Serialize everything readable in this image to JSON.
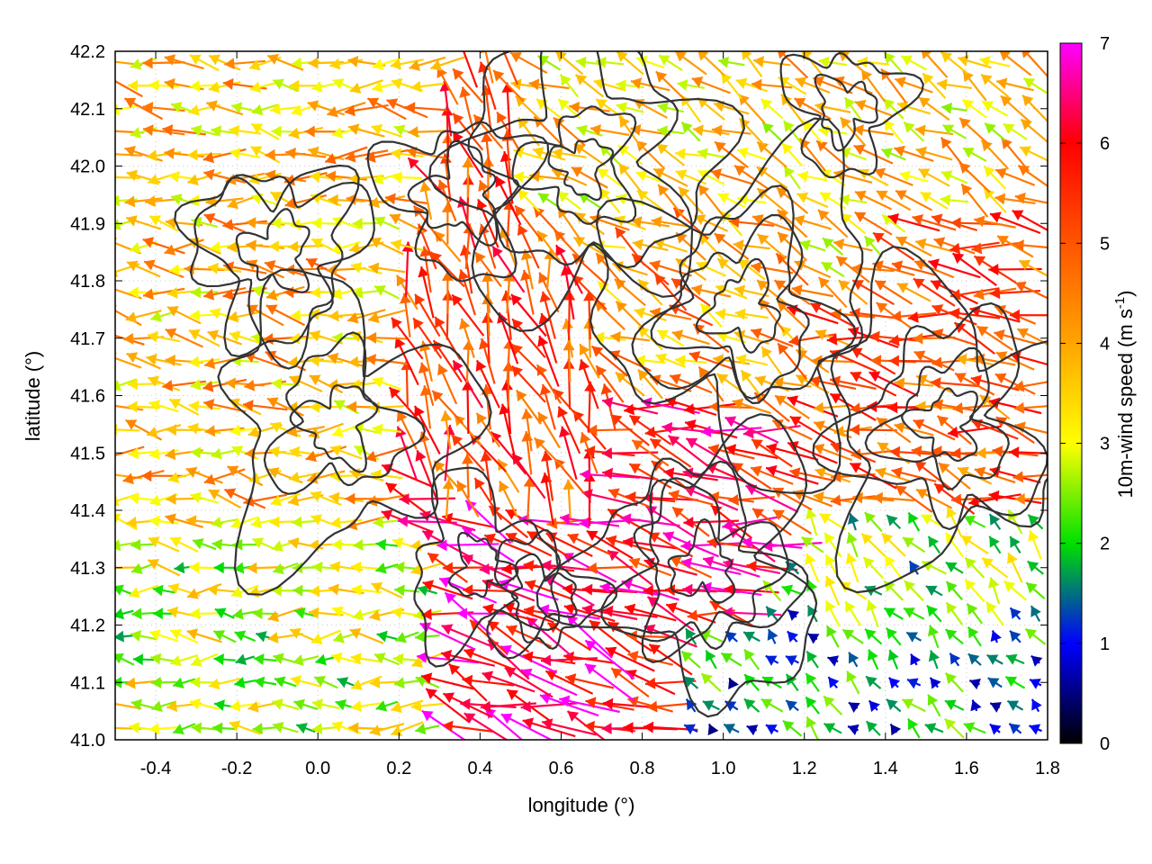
{
  "chart_data": {
    "type": "vector-field",
    "xlabel": "longitude (°)",
    "ylabel": "latitude (°)",
    "xlim": [
      -0.5,
      1.8
    ],
    "ylim": [
      41.0,
      42.2
    ],
    "x_ticks": [
      -0.4,
      -0.2,
      0.0,
      0.2,
      0.4,
      0.6,
      0.8,
      1.0,
      1.2,
      1.4,
      1.6,
      1.8
    ],
    "x_tick_labels": [
      "-0.4",
      "-0.2",
      "0.0",
      "0.2",
      "0.4",
      "0.6",
      "0.8",
      "1.0",
      "1.2",
      "1.4",
      "1.6",
      "1.8"
    ],
    "y_ticks": [
      41.0,
      41.1,
      41.2,
      41.3,
      41.4,
      41.5,
      41.6,
      41.7,
      41.8,
      41.9,
      42.0,
      42.1,
      42.2
    ],
    "y_tick_labels": [
      "41.0",
      "41.1",
      "41.2",
      "41.3",
      "41.4",
      "41.5",
      "41.6",
      "41.7",
      "41.8",
      "41.9",
      "42.0",
      "42.1",
      "42.2"
    ],
    "grid": "dotted",
    "colorbar": {
      "label_main": "10m-wind speed (m s",
      "label_sup": "-1",
      "label_end": ")",
      "range": [
        0,
        7
      ],
      "ticks": [
        0,
        1,
        2,
        3,
        4,
        5,
        6,
        7
      ],
      "tick_labels": [
        "0",
        "1",
        "2",
        "3",
        "4",
        "5",
        "6",
        "7"
      ],
      "color_stops": [
        {
          "value": 0,
          "color": "#000000"
        },
        {
          "value": 1,
          "color": "#0000ff"
        },
        {
          "value": 2,
          "color": "#00e000"
        },
        {
          "value": 3,
          "color": "#ffff00"
        },
        {
          "value": 4,
          "color": "#ffa500"
        },
        {
          "value": 5,
          "color": "#ff5500"
        },
        {
          "value": 6,
          "color": "#ff0000"
        },
        {
          "value": 7,
          "color": "#ff00ff"
        }
      ]
    },
    "wind_regions": [
      {
        "lon": [
          -0.5,
          0.2
        ],
        "lat": [
          41.35,
          42.2
        ],
        "speed": 3.8,
        "dir_deg": 175
      },
      {
        "lon": [
          -0.5,
          0.3
        ],
        "lat": [
          41.0,
          41.35
        ],
        "speed": 2.8,
        "dir_deg": 178
      },
      {
        "lon": [
          0.3,
          0.55
        ],
        "lat": [
          41.15,
          41.35
        ],
        "speed": 6.5,
        "dir_deg": 160
      },
      {
        "lon": [
          0.3,
          0.7
        ],
        "lat": [
          41.4,
          41.75
        ],
        "speed": 5.2,
        "dir_deg": 110
      },
      {
        "lon": [
          0.6,
          1.2
        ],
        "lat": [
          41.35,
          41.55
        ],
        "speed": 5.8,
        "dir_deg": 165
      },
      {
        "lon": [
          0.7,
          1.2
        ],
        "lat": [
          41.6,
          41.9
        ],
        "speed": 4.2,
        "dir_deg": 150
      },
      {
        "lon": [
          0.9,
          1.8
        ],
        "lat": [
          41.0,
          41.2
        ],
        "speed": 1.6,
        "dir_deg": 135
      },
      {
        "lon": [
          1.2,
          1.8
        ],
        "lat": [
          41.2,
          41.4
        ],
        "speed": 2.3,
        "dir_deg": 130
      },
      {
        "lon": [
          1.2,
          1.8
        ],
        "lat": [
          41.4,
          41.75
        ],
        "speed": 5.0,
        "dir_deg": 165
      },
      {
        "lon": [
          0.5,
          1.8
        ],
        "lat": [
          41.9,
          42.2
        ],
        "speed": 3.6,
        "dir_deg": 150
      }
    ],
    "contour_centers": [
      {
        "lon": 0.55,
        "lat": 41.25
      },
      {
        "lon": 0.4,
        "lat": 41.3
      },
      {
        "lon": 0.95,
        "lat": 41.3
      },
      {
        "lon": 1.55,
        "lat": 41.55
      },
      {
        "lon": 0.05,
        "lat": 41.55
      },
      {
        "lon": -0.1,
        "lat": 41.85
      },
      {
        "lon": 0.65,
        "lat": 42.0
      },
      {
        "lon": 1.3,
        "lat": 42.1
      },
      {
        "lon": 0.35,
        "lat": 41.95
      },
      {
        "lon": 1.05,
        "lat": 41.75
      }
    ]
  }
}
